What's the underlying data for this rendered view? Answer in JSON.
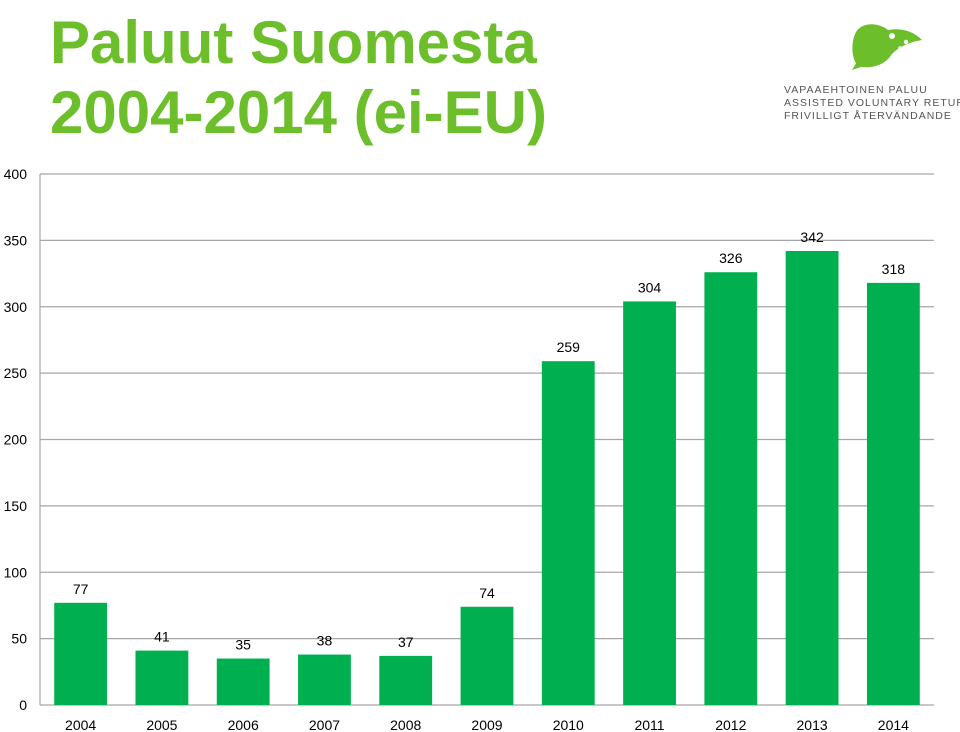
{
  "title_lines": [
    "Paluut Suomesta",
    "2004-2014 (ei-EU)"
  ],
  "logo": {
    "lines": [
      "VAPAAEHTOINEN PALUU",
      "ASSISTED VOLUNTARY RETURN",
      "FRIVILLIGT ÅTERVÄNDANDE"
    ],
    "icon": "green-bird-icon",
    "color": "#6cbf2b"
  },
  "colors": {
    "bar": "#00b050",
    "title": "#6cbf2b",
    "grid": "#a6a6a6"
  },
  "chart_data": {
    "type": "bar",
    "categories": [
      "2004",
      "2005",
      "2006",
      "2007",
      "2008",
      "2009",
      "2010",
      "2011",
      "2012",
      "2013",
      "2014"
    ],
    "values": [
      77,
      41,
      35,
      38,
      37,
      74,
      259,
      304,
      326,
      342,
      318
    ],
    "data_labels": [
      "77",
      "41",
      "35",
      "38",
      "37",
      "74",
      "259",
      "304",
      "326",
      "342",
      "318"
    ],
    "ylim": [
      0,
      400
    ],
    "yticks": [
      "0",
      "50",
      "100",
      "150",
      "200",
      "250",
      "300",
      "350",
      "400"
    ],
    "grid": true,
    "legend": "none"
  }
}
